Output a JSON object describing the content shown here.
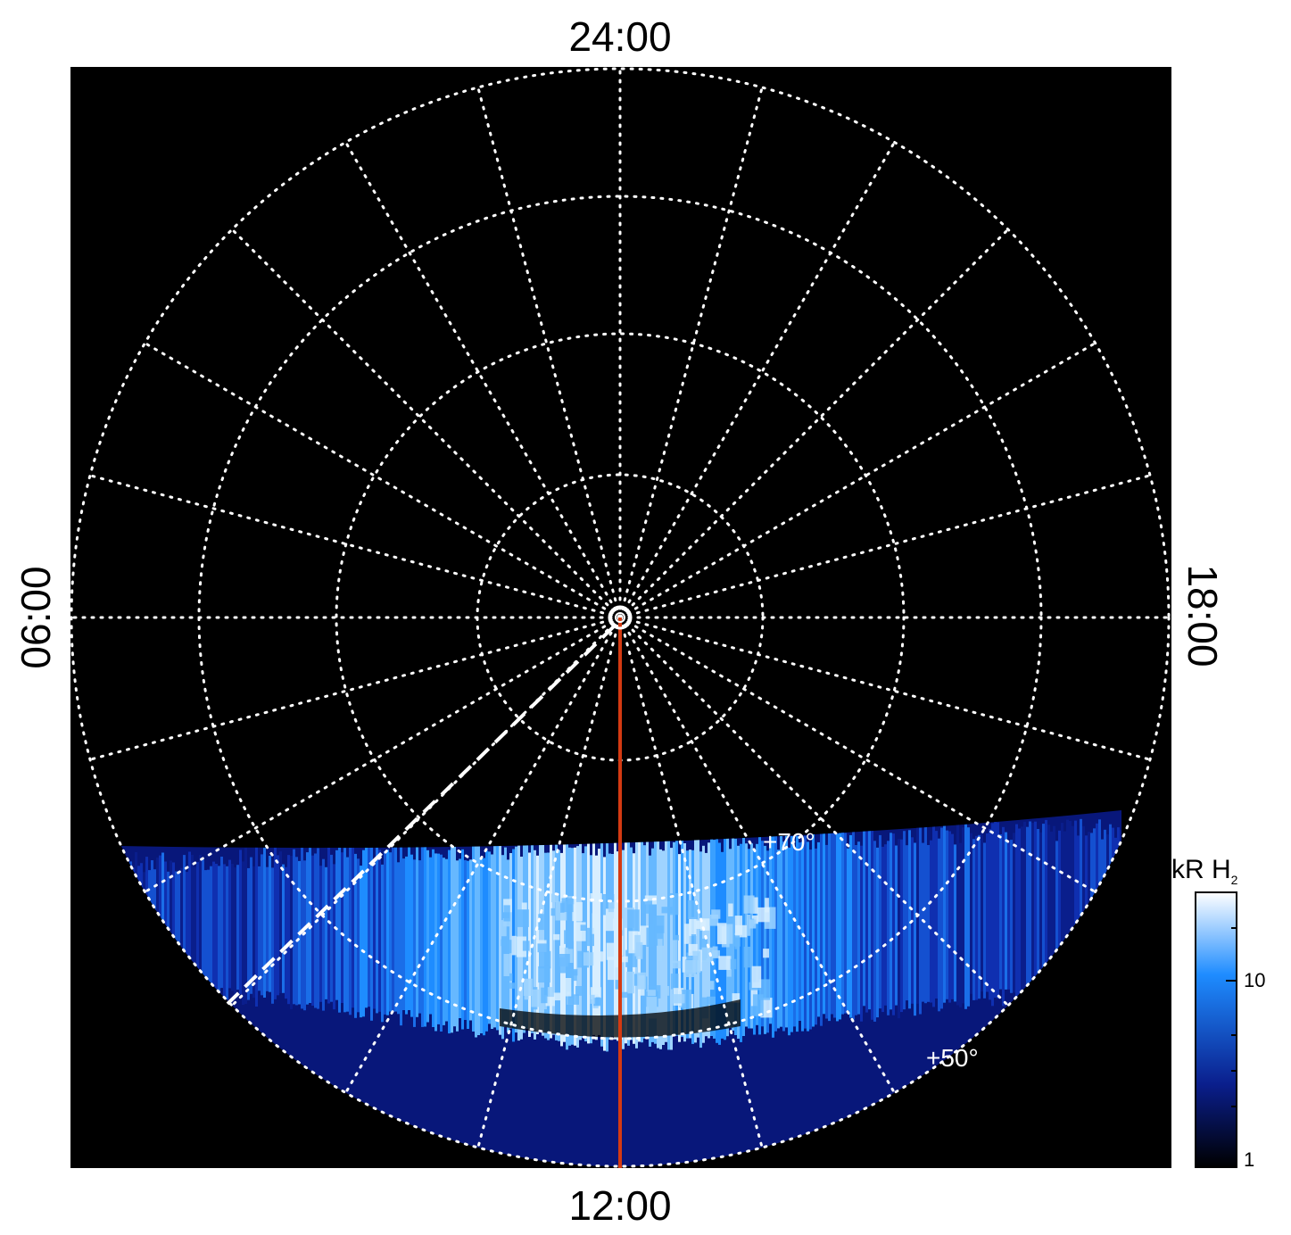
{
  "chart_data": {
    "type": "heatmap",
    "projection": "polar",
    "local_time_labels": {
      "top": "24:00",
      "bottom": "12:00",
      "left": "06:00",
      "right": "18:00"
    },
    "latitude_labels": [
      "+70°",
      "+50°"
    ],
    "colorbar": {
      "title_main": "kR H",
      "title_sub": "2",
      "tick_labels": [
        "10",
        "1"
      ],
      "ticks": [
        10,
        1
      ],
      "range": [
        1,
        30
      ],
      "scale": "log",
      "colors": [
        "#000000",
        "#0a1e8c",
        "#1e8cff",
        "#ffffff"
      ]
    },
    "grid": true,
    "background": "#000000",
    "grid_color": "#ffffff",
    "meridian_color": "#d43a12"
  }
}
